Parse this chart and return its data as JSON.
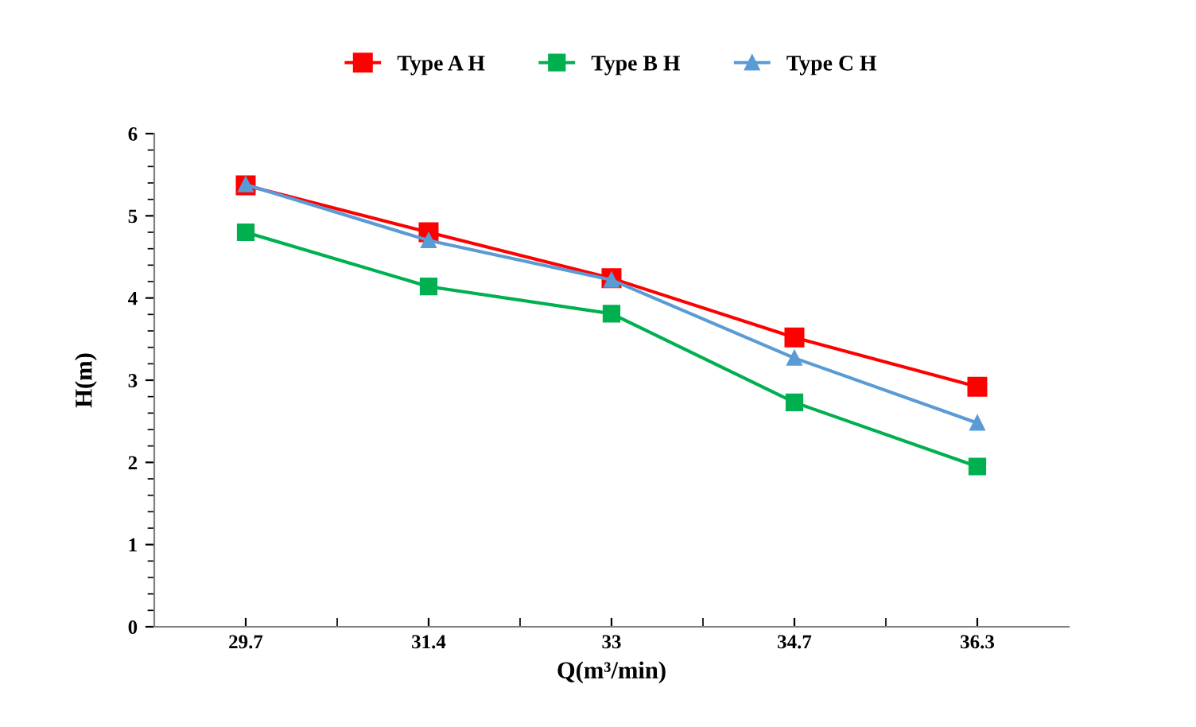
{
  "chart_data": {
    "type": "line",
    "xlabel": "Q(m³/min)",
    "ylabel": "H(m)",
    "categories": [
      "29.7",
      "31.4",
      "33",
      "34.7",
      "36.3"
    ],
    "series": [
      {
        "name": "Type A H",
        "color": "#ff0000",
        "marker": "square",
        "values": [
          5.37,
          4.8,
          4.24,
          3.52,
          2.92
        ]
      },
      {
        "name": "Type B H",
        "color": "#00b050",
        "marker": "square",
        "values": [
          4.8,
          4.14,
          3.81,
          2.73,
          1.95
        ]
      },
      {
        "name": "Type C H",
        "color": "#5b9bd5",
        "marker": "triangle",
        "values": [
          5.38,
          4.7,
          4.22,
          3.27,
          2.48
        ]
      }
    ],
    "ylim": [
      0,
      6
    ],
    "yticks": [
      0,
      1,
      2,
      3,
      4,
      5,
      6
    ],
    "grid": false,
    "legend": "top",
    "line_style": "solid"
  }
}
